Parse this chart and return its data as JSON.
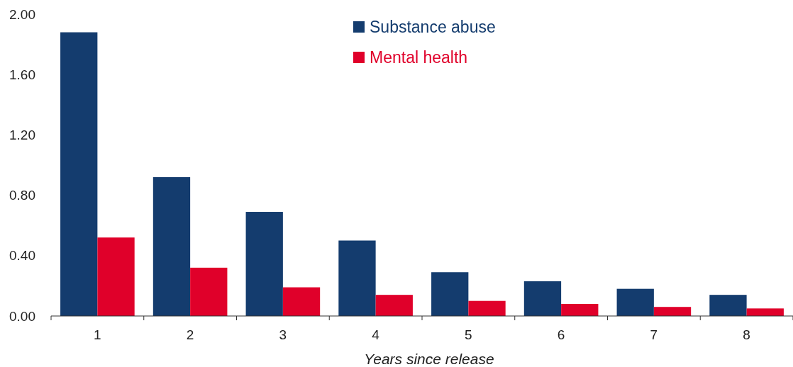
{
  "chart_data": {
    "type": "bar",
    "xlabel": "Years since release",
    "categories": [
      "1",
      "2",
      "3",
      "4",
      "5",
      "6",
      "7",
      "8"
    ],
    "series": [
      {
        "name": "Substance abuse",
        "color": "#143c6e",
        "values": [
          1.88,
          0.92,
          0.69,
          0.5,
          0.29,
          0.23,
          0.18,
          0.14
        ]
      },
      {
        "name": "Mental health",
        "color": "#e0002a",
        "values": [
          0.52,
          0.32,
          0.19,
          0.14,
          0.1,
          0.08,
          0.06,
          0.05
        ]
      }
    ],
    "ylim": [
      0,
      2
    ],
    "yticks": [
      {
        "value": 0,
        "label": "0.00"
      },
      {
        "value": 0.4,
        "label": "0.40"
      },
      {
        "value": 0.8,
        "label": "0.80"
      },
      {
        "value": 1.2,
        "label": "1.20"
      },
      {
        "value": 1.6,
        "label": "1.60"
      },
      {
        "value": 2,
        "label": "2.00"
      }
    ],
    "grid": false,
    "legend": "top"
  }
}
